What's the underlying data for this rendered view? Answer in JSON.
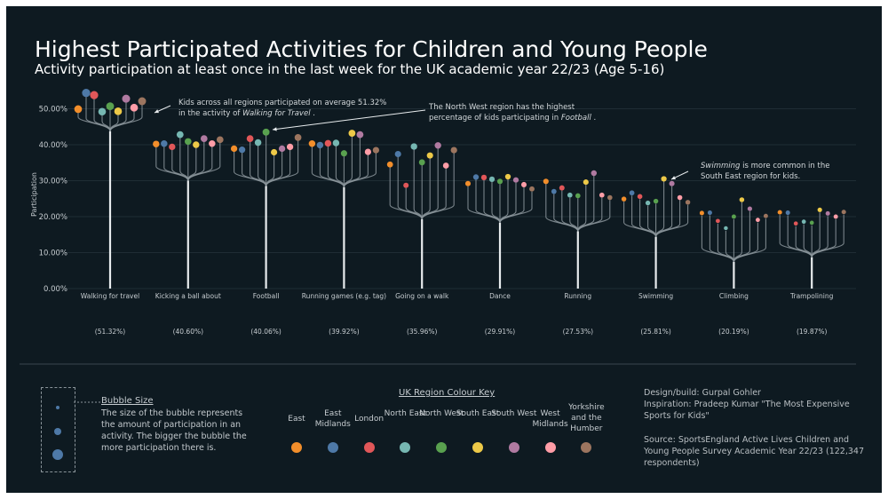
{
  "header": {
    "title": "Highest Participated Activities for Children and Young People",
    "subtitle": "Activity participation at least once in the last week for the UK academic year 22/23 (Age 5-16)"
  },
  "chart_data": {
    "type": "scatter",
    "ylabel": "Participation",
    "ylim": [
      0,
      55
    ],
    "yticks": [
      "0.00%",
      "10.00%",
      "20.00%",
      "30.00%",
      "40.00%",
      "50.00%"
    ],
    "ytick_values": [
      0,
      10,
      20,
      30,
      40,
      50
    ],
    "regions": [
      {
        "name": "East",
        "color": "#f28e2b"
      },
      {
        "name": "East Midlands",
        "color": "#4e79a7"
      },
      {
        "name": "London",
        "color": "#e15759"
      },
      {
        "name": "North East",
        "color": "#76b7b2"
      },
      {
        "name": "North West",
        "color": "#59a14f"
      },
      {
        "name": "South East",
        "color": "#edc948"
      },
      {
        "name": "South West",
        "color": "#b07aa1"
      },
      {
        "name": "West Midlands",
        "color": "#ff9da7"
      },
      {
        "name": "Yorkshire and the Humber",
        "color": "#9c755f"
      }
    ],
    "activities": [
      {
        "name": "Walking for travel",
        "average": "(51.32%)",
        "values": [
          49.9,
          54.4,
          53.8,
          49.2,
          50.7,
          49.3,
          52.8,
          50.3,
          52.1
        ]
      },
      {
        "name": "Kicking a ball about",
        "average": "(40.60%)",
        "values": [
          40.2,
          40.3,
          39.4,
          42.8,
          40.9,
          40.0,
          41.7,
          40.3,
          41.4
        ]
      },
      {
        "name": "Football",
        "average": "(40.06%)",
        "values": [
          38.9,
          38.6,
          41.7,
          40.6,
          43.5,
          37.9,
          38.9,
          39.4,
          42.0
        ]
      },
      {
        "name": "Running games (e.g. tag)",
        "average": "(39.92%)",
        "values": [
          40.3,
          39.9,
          40.4,
          40.5,
          37.6,
          43.2,
          42.8,
          38.0,
          38.5
        ]
      },
      {
        "name": "Going on a walk",
        "average": "(35.96%)",
        "values": [
          34.5,
          37.4,
          28.7,
          39.5,
          35.1,
          37.0,
          39.8,
          34.2,
          38.5
        ]
      },
      {
        "name": "Dance",
        "average": "(29.91%)",
        "values": [
          29.2,
          31.0,
          30.9,
          30.4,
          29.8,
          31.1,
          30.2,
          28.9,
          27.7
        ]
      },
      {
        "name": "Running",
        "average": "(27.53%)",
        "values": [
          29.8,
          27.0,
          28.0,
          26.0,
          25.8,
          29.6,
          32.1,
          26.0,
          25.3
        ]
      },
      {
        "name": "Swimming",
        "average": "(25.81%)",
        "values": [
          24.9,
          26.6,
          25.6,
          23.8,
          24.3,
          30.5,
          29.2,
          25.3,
          24.0
        ]
      },
      {
        "name": "Climbing",
        "average": "(20.19%)",
        "values": [
          21.0,
          21.1,
          18.8,
          16.8,
          20.0,
          24.7,
          22.2,
          19.1,
          20.2
        ]
      },
      {
        "name": "Trampolining",
        "average": "(19.87%)",
        "values": [
          21.2,
          21.1,
          18.1,
          18.6,
          18.3,
          21.9,
          20.9,
          20.0,
          21.3
        ]
      }
    ],
    "annotations": {
      "walking": "Kids across all regions participated on average 51.32% in the activity of Walking for Travel .",
      "football": "The North West region has the highest percentage of kids participating in Football .",
      "swimming": "Swimming is more common in the South East region for kids."
    }
  },
  "bubble_legend": {
    "title": "Bubble Size",
    "description": "The size of the bubble represents the amount of participation in an activity. The bigger the bubble the more participation there is."
  },
  "region_key": {
    "title": "UK Region Colour Key",
    "labels": [
      "East",
      "East Midlands",
      "London",
      "North East",
      "North West",
      "South East",
      "South West",
      "West Midlands",
      "Yorkshire and the Humber"
    ]
  },
  "credits": {
    "design": "Design/build: Gurpal Gohler",
    "inspiration": "Inspiration: Pradeep Kumar \"The Most Expensive Sports for Kids\"",
    "source": "Source: SportsEngland Active Lives Children and Young People Survey Academic Year 22/23 (122,347 respondents)"
  }
}
